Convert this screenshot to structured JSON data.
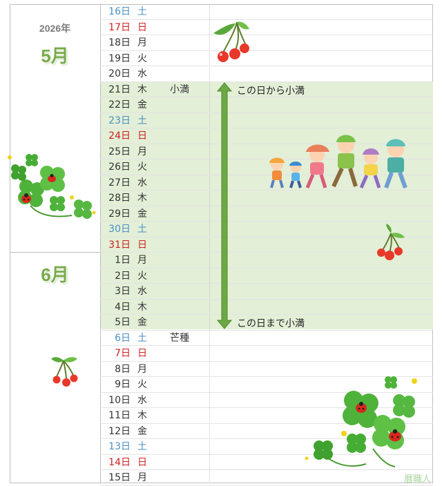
{
  "year": "2026年",
  "months": [
    {
      "label": "5月"
    },
    {
      "label": "6月"
    }
  ],
  "days": [
    {
      "date": "16日",
      "dow": "土",
      "kind": "sat",
      "term": ""
    },
    {
      "date": "17日",
      "dow": "日",
      "kind": "sun",
      "term": ""
    },
    {
      "date": "18日",
      "dow": "月",
      "kind": "weekday",
      "term": ""
    },
    {
      "date": "19日",
      "dow": "火",
      "kind": "weekday",
      "term": ""
    },
    {
      "date": "20日",
      "dow": "水",
      "kind": "weekday",
      "term": ""
    },
    {
      "date": "21日",
      "dow": "木",
      "kind": "weekday",
      "term": "小満"
    },
    {
      "date": "22日",
      "dow": "金",
      "kind": "weekday",
      "term": ""
    },
    {
      "date": "23日",
      "dow": "土",
      "kind": "sat",
      "term": ""
    },
    {
      "date": "24日",
      "dow": "日",
      "kind": "sun",
      "term": ""
    },
    {
      "date": "25日",
      "dow": "月",
      "kind": "weekday",
      "term": ""
    },
    {
      "date": "26日",
      "dow": "火",
      "kind": "weekday",
      "term": ""
    },
    {
      "date": "27日",
      "dow": "水",
      "kind": "weekday",
      "term": ""
    },
    {
      "date": "28日",
      "dow": "木",
      "kind": "weekday",
      "term": ""
    },
    {
      "date": "29日",
      "dow": "金",
      "kind": "weekday",
      "term": ""
    },
    {
      "date": "30日",
      "dow": "土",
      "kind": "sat",
      "term": ""
    },
    {
      "date": "31日",
      "dow": "日",
      "kind": "sun",
      "term": ""
    },
    {
      "date": "1日",
      "dow": "月",
      "kind": "weekday",
      "term": ""
    },
    {
      "date": "2日",
      "dow": "火",
      "kind": "weekday",
      "term": ""
    },
    {
      "date": "3日",
      "dow": "水",
      "kind": "weekday",
      "term": ""
    },
    {
      "date": "4日",
      "dow": "木",
      "kind": "weekday",
      "term": ""
    },
    {
      "date": "5日",
      "dow": "金",
      "kind": "weekday",
      "term": ""
    },
    {
      "date": "6日",
      "dow": "土",
      "kind": "sat",
      "term": "芒種"
    },
    {
      "date": "7日",
      "dow": "日",
      "kind": "sun",
      "term": ""
    },
    {
      "date": "8日",
      "dow": "月",
      "kind": "weekday",
      "term": ""
    },
    {
      "date": "9日",
      "dow": "火",
      "kind": "weekday",
      "term": ""
    },
    {
      "date": "10日",
      "dow": "水",
      "kind": "weekday",
      "term": ""
    },
    {
      "date": "11日",
      "dow": "木",
      "kind": "weekday",
      "term": ""
    },
    {
      "date": "12日",
      "dow": "金",
      "kind": "weekday",
      "term": ""
    },
    {
      "date": "13日",
      "dow": "土",
      "kind": "sat",
      "term": ""
    },
    {
      "date": "14日",
      "dow": "日",
      "kind": "sun",
      "term": ""
    },
    {
      "date": "15日",
      "dow": "月",
      "kind": "weekday",
      "term": ""
    }
  ],
  "period": {
    "start_note": "この日から小満",
    "end_note": "この日まで小満"
  },
  "watermark": "暦職人",
  "colors": {
    "saturday": "#4a8fc4",
    "sunday": "#d0201e",
    "weekday": "#333333",
    "period_band": "#e3efd7",
    "month_label": "#78aa4a",
    "arrow": "#6ca843"
  },
  "illustrations": [
    "cherry-icon",
    "cherry-icon",
    "cherry-icon",
    "four-leaf-clover-icon",
    "ladybug-icon",
    "hiking-family-illustration",
    "four-leaf-clover-icon",
    "ladybug-icon"
  ]
}
